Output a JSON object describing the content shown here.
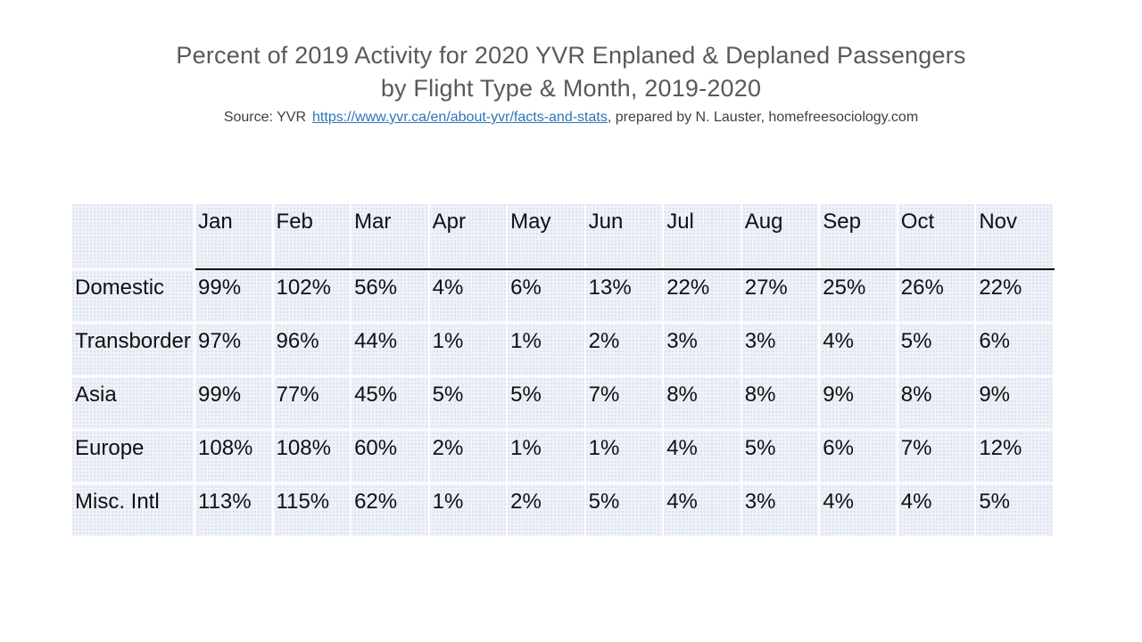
{
  "title": {
    "line1": "Percent of 2019 Activity for 2020 YVR Enplaned & Deplaned Passengers",
    "line2": "by Flight Type & Month, 2019-2020"
  },
  "source": {
    "prefix": "Source: YVR",
    "link_text": "https://www.yvr.ca/en/about-yvr/facts-and-stats",
    "suffix": ", prepared by N. Lauster, homefreesociology.com"
  },
  "colors": {
    "title_text": "#595959",
    "source_text": "#404040",
    "link_blue": "#2E75B6",
    "table_fill": "#EFF2F9",
    "table_text": "#101010",
    "gridline": "#FFFFFF",
    "header_rule": "#000000"
  },
  "chart_data": {
    "type": "table",
    "title": "Percent of 2019 Activity for 2020 YVR Enplaned & Deplaned Passengers by Flight Type & Month, 2019-2020",
    "columns": [
      "Jan",
      "Feb",
      "Mar",
      "Apr",
      "May",
      "Jun",
      "Jul",
      "Aug",
      "Sep",
      "Oct",
      "Nov"
    ],
    "rows": [
      {
        "label": "Domestic",
        "values": [
          "99%",
          "102%",
          "56%",
          "4%",
          "6%",
          "13%",
          "22%",
          "27%",
          "25%",
          "26%",
          "22%"
        ]
      },
      {
        "label": "Transborder",
        "values": [
          "97%",
          "96%",
          "44%",
          "1%",
          "1%",
          "2%",
          "3%",
          "3%",
          "4%",
          "5%",
          "6%"
        ]
      },
      {
        "label": "Asia",
        "values": [
          "99%",
          "77%",
          "45%",
          "5%",
          "5%",
          "7%",
          "8%",
          "8%",
          "9%",
          "8%",
          "9%"
        ]
      },
      {
        "label": "Europe",
        "values": [
          "108%",
          "108%",
          "60%",
          "2%",
          "1%",
          "1%",
          "4%",
          "5%",
          "6%",
          "7%",
          "12%"
        ]
      },
      {
        "label": "Misc. Intl",
        "values": [
          "113%",
          "115%",
          "62%",
          "1%",
          "2%",
          "5%",
          "4%",
          "3%",
          "4%",
          "4%",
          "5%"
        ]
      }
    ],
    "layout": {
      "header_rule_spans_data_columns_only": true,
      "gridlines": "white",
      "legend": "none"
    }
  }
}
